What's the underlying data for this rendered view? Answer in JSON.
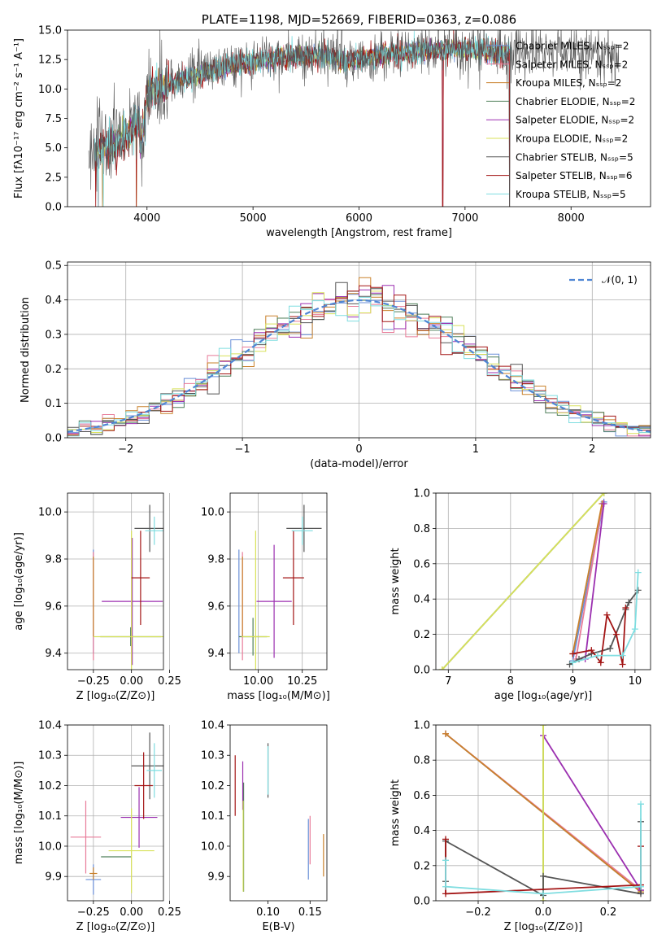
{
  "colors": {
    "Chabrier MILES": "#6a8fd8",
    "Salpeter MILES": "#e87b98",
    "Kroupa MILES": "#c9812b",
    "Chabrier ELODIE": "#4f7f5a",
    "Salpeter ELODIE": "#9b2fb0",
    "Kroupa ELODIE": "#d8e15a",
    "Chabrier STELIB": "#555555",
    "Salpeter STELIB": "#a31515",
    "Kroupa STELIB": "#7fdde0"
  },
  "chart_data": [
    {
      "id": "spectrum",
      "type": "line",
      "title": "PLATE=1198, MJD=52669, FIBERID=0363, z=0.086",
      "xlabel": "wavelength [Angstrom, rest frame]",
      "ylabel": "Flux [fλ10⁻¹⁷ erg cm⁻² s⁻¹ A⁻¹]",
      "xlim": [
        3250,
        8750
      ],
      "ylim": [
        0,
        15
      ],
      "xticks": [
        "4000",
        "5000",
        "6000",
        "7000",
        "8000"
      ],
      "yticks": [
        "0.0",
        "2.5",
        "5.0",
        "7.5",
        "10.0",
        "12.5",
        "15.0"
      ],
      "legend_position": "top-right",
      "legend": [
        "Chabrier MILES, Nₛₛₚ=2",
        "Salpeter MILES, Nₛₛₚ=2",
        "Kroupa MILES, Nₛₛₚ=2",
        "Chabrier ELODIE, Nₛₛₚ=2",
        "Salpeter ELODIE, Nₛₛₚ=2",
        "Kroupa ELODIE, Nₛₛₚ=2",
        "Chabrier STELIB, Nₛₛₚ=5",
        "Salpeter STELIB, Nₛₛₚ=6",
        "Kroupa STELIB, Nₛₛₚ=5"
      ],
      "continuum": {
        "x": [
          3500,
          3700,
          3900,
          3950,
          4000,
          4200,
          4500,
          4800,
          5200,
          5600,
          5900,
          6000,
          6500,
          7000,
          7400,
          7800,
          8200,
          8400
        ],
        "y": [
          4.5,
          5.5,
          6.8,
          7.8,
          9.5,
          10.4,
          11.3,
          12.0,
          12.6,
          12.9,
          12.3,
          12.6,
          13.2,
          13.4,
          13.0,
          13.1,
          13.0,
          12.7
        ]
      },
      "spikes": [
        {
          "x": 3540,
          "y": 0
        },
        {
          "x": 3900,
          "y": 0
        },
        {
          "x": 6790,
          "y": 0
        },
        {
          "x": 7420,
          "y": 0
        }
      ]
    },
    {
      "id": "residuals",
      "type": "step",
      "xlabel": "(data-model)/error",
      "ylabel": "Normed distribution",
      "xlim": [
        -2.5,
        2.5
      ],
      "ylim": [
        0,
        0.51
      ],
      "xticks": [
        "−2",
        "−1",
        "0",
        "1",
        "2"
      ],
      "yticks": [
        "0.0",
        "0.1",
        "0.2",
        "0.3",
        "0.4",
        "0.5"
      ],
      "legend_position": "top-right",
      "legend": [
        "𝒩(0, 1)"
      ],
      "bin_width": 0.1,
      "bin_start": -2.5,
      "normal": {
        "mean": 0,
        "sd": 1
      }
    },
    {
      "id": "age-vs-Z",
      "type": "errorbar",
      "xlabel": "Z [log₁₀(Z/Z⊙)]",
      "ylabel": "age  [log₁₀(age/yr)]",
      "xlim": [
        -0.42,
        0.21
      ],
      "ylim": [
        9.33,
        10.08
      ],
      "xticks": [
        "−0.25",
        "0.00",
        "0.25"
      ],
      "xtick_values": [
        -0.25,
        0,
        0.25
      ],
      "yticks": [
        "9.4",
        "9.6",
        "9.8",
        "10.0"
      ],
      "ytick_values": [
        9.4,
        9.6,
        9.8,
        10.0
      ],
      "points": [
        {
          "s": "Chabrier MILES",
          "x": -0.25,
          "y": 9.62,
          "xe": 0,
          "ye": 0.22
        },
        {
          "s": "Salpeter MILES",
          "x": -0.25,
          "y": 9.6,
          "xe": 0,
          "ye": 0.23
        },
        {
          "s": "Kroupa MILES",
          "x": -0.25,
          "y": 9.64,
          "xe": 0,
          "ye": 0.17
        },
        {
          "s": "Chabrier ELODIE",
          "x": -0.005,
          "y": 9.47,
          "xe": 0.2,
          "ye": 0.04
        },
        {
          "s": "Salpeter ELODIE",
          "x": 0.005,
          "y": 9.62,
          "xe": 0.2,
          "ye": 0.27
        },
        {
          "s": "Kroupa ELODIE",
          "x": 0.0,
          "y": 9.47,
          "xe": 0.25,
          "ye": 0.45
        },
        {
          "s": "Chabrier STELIB",
          "x": 0.12,
          "y": 9.93,
          "xe": 0.1,
          "ye": 0.1
        },
        {
          "s": "Salpeter STELIB",
          "x": 0.06,
          "y": 9.72,
          "xe": 0.06,
          "ye": 0.2
        },
        {
          "s": "Kroupa STELIB",
          "x": 0.15,
          "y": 9.92,
          "xe": 0.06,
          "ye": 0.06
        }
      ]
    },
    {
      "id": "age-vs-mass",
      "type": "errorbar",
      "xlabel": "mass [log₁₀(M/M⊙)]",
      "ylabel": "",
      "xlim": [
        9.84,
        10.39
      ],
      "ylim": [
        9.33,
        10.08
      ],
      "xticks": [
        "10.00",
        "10.25"
      ],
      "xtick_values": [
        10.0,
        10.25
      ],
      "yticks": [
        "9.4",
        "9.6",
        "9.8",
        "10.0"
      ],
      "ytick_values": [
        9.4,
        9.6,
        9.8,
        10.0
      ],
      "points": [
        {
          "s": "Chabrier MILES",
          "x": 9.89,
          "y": 9.62,
          "xe": 0,
          "ye": 0.22
        },
        {
          "s": "Salpeter MILES",
          "x": 9.91,
          "y": 9.6,
          "xe": 0,
          "ye": 0.23
        },
        {
          "s": "Kroupa MILES",
          "x": 9.91,
          "y": 9.64,
          "xe": 0,
          "ye": 0.17
        },
        {
          "s": "Chabrier ELODIE",
          "x": 9.97,
          "y": 9.47,
          "xe": 0.08,
          "ye": 0.08
        },
        {
          "s": "Salpeter ELODIE",
          "x": 10.09,
          "y": 9.62,
          "xe": 0.1,
          "ye": 0.24
        },
        {
          "s": "Kroupa ELODIE",
          "x": 9.985,
          "y": 9.47,
          "xe": 0.08,
          "ye": 0.45
        },
        {
          "s": "Chabrier STELIB",
          "x": 10.26,
          "y": 9.93,
          "xe": 0.1,
          "ye": 0.1
        },
        {
          "s": "Salpeter STELIB",
          "x": 10.2,
          "y": 9.72,
          "xe": 0.06,
          "ye": 0.2
        },
        {
          "s": "Kroupa STELIB",
          "x": 10.25,
          "y": 9.92,
          "xe": 0.06,
          "ye": 0.06
        }
      ]
    },
    {
      "id": "weight-vs-age",
      "type": "line",
      "xlabel": "age  [log₁₀(age/yr)]",
      "ylabel": "mass weight",
      "xlim": [
        6.8,
        10.25
      ],
      "ylim": [
        0,
        1
      ],
      "xticks": [
        "7",
        "8",
        "9",
        "10"
      ],
      "xtick_values": [
        7,
        8,
        9,
        10
      ],
      "yticks": [
        "0.0",
        "0.2",
        "0.4",
        "0.6",
        "0.8",
        "1.0"
      ],
      "ytick_values": [
        0,
        0.2,
        0.4,
        0.6,
        0.8,
        1.0
      ],
      "series": [
        {
          "s": "Chabrier MILES",
          "x": [
            9.0,
            9.5
          ],
          "y": [
            0.05,
            0.95
          ]
        },
        {
          "s": "Salpeter MILES",
          "x": [
            9.05,
            9.48
          ],
          "y": [
            0.06,
            0.94
          ]
        },
        {
          "s": "Kroupa MILES",
          "x": [
            9.0,
            9.47
          ],
          "y": [
            0.09,
            0.94
          ]
        },
        {
          "s": "Chabrier ELODIE",
          "x": [
            6.9,
            9.5
          ],
          "y": [
            0.0,
            1.0
          ]
        },
        {
          "s": "Salpeter ELODIE",
          "x": [
            9.2,
            9.5
          ],
          "y": [
            0.06,
            0.94
          ]
        },
        {
          "s": "Kroupa ELODIE",
          "x": [
            6.9,
            9.5
          ],
          "y": [
            0.0,
            1.0
          ]
        },
        {
          "s": "Chabrier STELIB",
          "x": [
            8.95,
            9.1,
            9.3,
            9.6,
            9.85,
            9.9,
            10.05
          ],
          "y": [
            0.03,
            0.06,
            0.09,
            0.12,
            0.34,
            0.38,
            0.45
          ]
        },
        {
          "s": "Salpeter STELIB",
          "x": [
            9.0,
            9.3,
            9.45,
            9.55,
            9.7,
            9.8,
            9.85
          ],
          "y": [
            0.09,
            0.11,
            0.04,
            0.31,
            0.2,
            0.03,
            0.35
          ]
        },
        {
          "s": "Kroupa STELIB",
          "x": [
            9.0,
            9.4,
            9.8,
            10.0,
            10.05
          ],
          "y": [
            0.04,
            0.08,
            0.08,
            0.23,
            0.55
          ]
        }
      ]
    },
    {
      "id": "mass-vs-Z",
      "type": "errorbar",
      "xlabel": "Z [log₁₀(Z/Z⊙)]",
      "ylabel": "mass [log₁₀(M/M⊙)]",
      "xlim": [
        -0.42,
        0.21
      ],
      "ylim": [
        9.82,
        10.4
      ],
      "xticks": [
        "−0.25",
        "0.00",
        "0.25"
      ],
      "xtick_values": [
        -0.25,
        0,
        0.25
      ],
      "yticks": [
        "9.9",
        "10.0",
        "10.1",
        "10.2",
        "10.3",
        "10.4"
      ],
      "ytick_values": [
        9.9,
        10.0,
        10.1,
        10.2,
        10.3,
        10.4
      ],
      "points": [
        {
          "s": "Chabrier MILES",
          "x": -0.25,
          "y": 9.89,
          "xe": 0.05,
          "ye": 0.05
        },
        {
          "s": "Salpeter MILES",
          "x": -0.3,
          "y": 10.03,
          "xe": 0.1,
          "ye": 0.12
        },
        {
          "s": "Kroupa MILES",
          "x": -0.25,
          "y": 9.91,
          "xe": 0.025,
          "ye": 0.02
        },
        {
          "s": "Chabrier ELODIE",
          "x": -0.1,
          "y": 9.965,
          "xe": 0.1,
          "ye": 0.0
        },
        {
          "s": "Salpeter ELODIE",
          "x": 0.05,
          "y": 10.095,
          "xe": 0.12,
          "ye": 0.1
        },
        {
          "s": "Kroupa ELODIE",
          "x": 0.0,
          "y": 9.985,
          "xe": 0.15,
          "ye": 0.14
        },
        {
          "s": "Chabrier STELIB",
          "x": 0.12,
          "y": 10.265,
          "xe": 0.12,
          "ye": 0.11
        },
        {
          "s": "Salpeter STELIB",
          "x": 0.08,
          "y": 10.2,
          "xe": 0.06,
          "ye": 0.11
        },
        {
          "s": "Kroupa STELIB",
          "x": 0.15,
          "y": 10.25,
          "xe": 0.05,
          "ye": 0.09
        }
      ]
    },
    {
      "id": "mass-vs-ebv",
      "type": "errorbar",
      "xlabel": "E(B-V)",
      "ylabel": "",
      "xlim": [
        0.055,
        0.17
      ],
      "ylim": [
        9.82,
        10.4
      ],
      "xticks": [
        "0.10",
        "0.15"
      ],
      "xtick_values": [
        0.1,
        0.15
      ],
      "yticks": [
        "9.9",
        "10.0",
        "10.1",
        "10.2",
        "10.3",
        "10.4"
      ],
      "ytick_values": [
        9.9,
        10.0,
        10.1,
        10.2,
        10.3,
        10.4
      ],
      "points": [
        {
          "s": "Chabrier MILES",
          "x": 0.148,
          "y": 9.99,
          "xe": 0,
          "ye": 0.1
        },
        {
          "s": "Salpeter MILES",
          "x": 0.15,
          "y": 10.02,
          "xe": 0,
          "ye": 0.08
        },
        {
          "s": "Kroupa MILES",
          "x": 0.166,
          "y": 9.97,
          "xe": 0,
          "ye": 0.07
        },
        {
          "s": "Chabrier ELODIE",
          "x": 0.071,
          "y": 10.03,
          "xe": 0,
          "ye": 0.18
        },
        {
          "s": "Salpeter ELODIE",
          "x": 0.07,
          "y": 10.2,
          "xe": 0,
          "ye": 0.08
        },
        {
          "s": "Kroupa ELODIE",
          "x": 0.0705,
          "y": 10.0,
          "xe": 0,
          "ye": 0.15
        },
        {
          "s": "Chabrier STELIB",
          "x": 0.1,
          "y": 10.25,
          "xe": 0,
          "ye": 0.09
        },
        {
          "s": "Salpeter STELIB",
          "x": 0.061,
          "y": 10.2,
          "xe": 0,
          "ye": 0.1
        },
        {
          "s": "Kroupa STELIB",
          "x": 0.1,
          "y": 10.25,
          "xe": 0,
          "ye": 0.08
        }
      ]
    },
    {
      "id": "weight-vs-Z",
      "type": "line",
      "xlabel": "Z [log₁₀(Z/Z⊙)]",
      "ylabel": "mass weight",
      "xlim": [
        -0.33,
        0.33
      ],
      "ylim": [
        0,
        1
      ],
      "xticks": [
        "−0.2",
        "0.0",
        "0.2"
      ],
      "xtick_values": [
        -0.2,
        0,
        0.2
      ],
      "yticks": [
        "0.0",
        "0.2",
        "0.4",
        "0.6",
        "0.8",
        "1.0"
      ],
      "ytick_values": [
        0,
        0.2,
        0.4,
        0.6,
        0.8,
        1.0
      ],
      "series": [
        {
          "s": "Chabrier MILES",
          "x": [
            -0.3,
            0.3
          ],
          "y": [
            0.95,
            0.05
          ]
        },
        {
          "s": "Salpeter MILES",
          "x": [
            -0.3,
            0.3
          ],
          "y": [
            0.95,
            0.06
          ]
        },
        {
          "s": "Kroupa MILES",
          "x": [
            -0.3,
            0.3
          ],
          "y": [
            0.95,
            0.05
          ]
        },
        {
          "s": "Chabrier ELODIE",
          "x": [
            0.0,
            0.0
          ],
          "y": [
            0.0,
            1.0
          ]
        },
        {
          "s": "Salpeter ELODIE",
          "x": [
            0.0,
            0.3
          ],
          "y": [
            0.94,
            0.06
          ]
        },
        {
          "s": "Kroupa ELODIE",
          "x": [
            0.0,
            0.0
          ],
          "y": [
            0.0,
            1.0
          ]
        },
        {
          "s": "Chabrier STELIB",
          "x": [
            -0.3,
            -0.3,
            0.0,
            0.0,
            0.3,
            0.3
          ],
          "y": [
            0.11,
            0.34,
            0.03,
            0.14,
            0.04,
            0.45
          ]
        },
        {
          "s": "Salpeter STELIB",
          "x": [
            -0.3,
            -0.3,
            0.3,
            0.3
          ],
          "y": [
            0.35,
            0.04,
            0.09,
            0.31
          ]
        },
        {
          "s": "Kroupa STELIB",
          "x": [
            -0.3,
            -0.3,
            0.0,
            0.3,
            0.3
          ],
          "y": [
            0.23,
            0.08,
            0.04,
            0.08,
            0.55
          ]
        }
      ]
    }
  ]
}
